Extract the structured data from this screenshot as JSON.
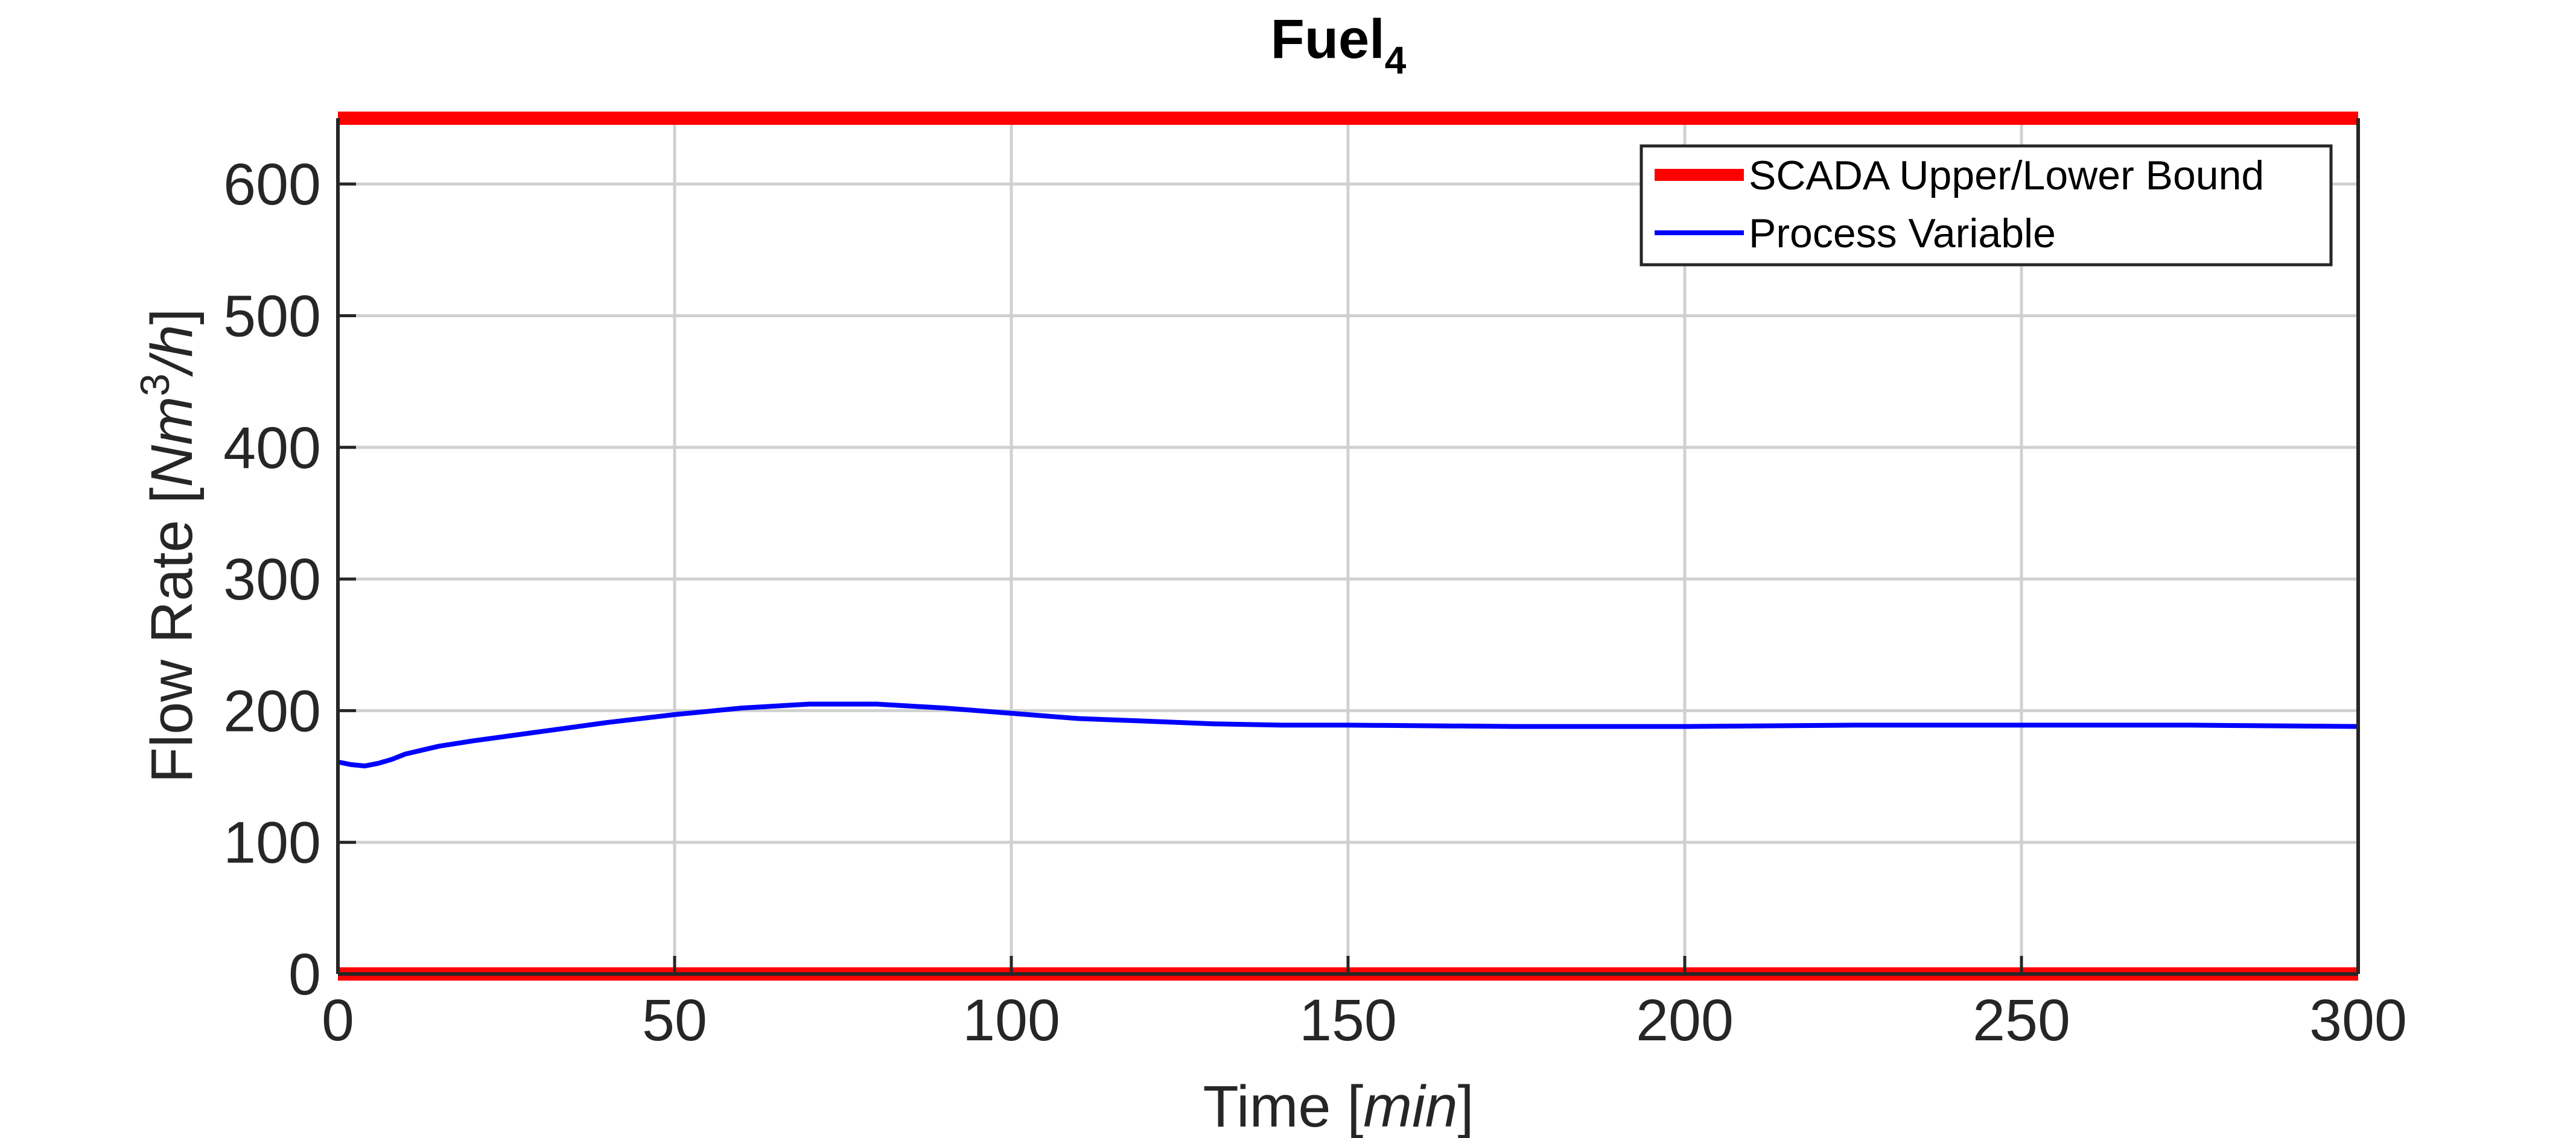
{
  "chart_data": {
    "type": "line",
    "title": "Fuel",
    "title_subscript": "4",
    "xlabel": "Time",
    "xlabel_unit": "min",
    "ylabel": "Flow Rate",
    "ylabel_unit_base": "Nm",
    "ylabel_unit_sup": "3",
    "ylabel_unit_tail": "/h",
    "xlim": [
      0,
      300
    ],
    "ylim": [
      0,
      650
    ],
    "xticks": [
      0,
      50,
      100,
      150,
      200,
      250,
      300
    ],
    "yticks": [
      0,
      100,
      200,
      300,
      400,
      500,
      600
    ],
    "grid": true,
    "legend_position": "top-right",
    "colors": {
      "bound": "#ff0000",
      "process": "#0000ff"
    },
    "series": [
      {
        "name": "SCADA Upper/Lower Bound",
        "kind": "bounds",
        "upper": 650,
        "lower": 0
      },
      {
        "name": "Process Variable",
        "kind": "line",
        "x": [
          0,
          2,
          4,
          6,
          8,
          10,
          15,
          20,
          30,
          40,
          50,
          60,
          70,
          80,
          90,
          100,
          110,
          120,
          130,
          140,
          150,
          175,
          200,
          225,
          250,
          275,
          300
        ],
        "y": [
          161,
          159,
          158,
          160,
          163,
          167,
          173,
          177,
          184,
          191,
          197,
          202,
          205,
          205,
          202,
          198,
          194,
          192,
          190,
          189,
          189,
          188,
          188,
          189,
          189,
          189,
          188
        ]
      }
    ]
  }
}
